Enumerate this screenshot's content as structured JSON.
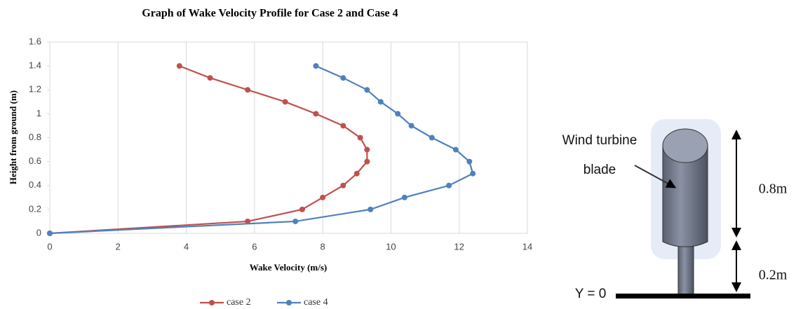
{
  "chart_data": {
    "type": "line",
    "title": "Graph of Wake Velocity Profile for Case 2 and Case 4",
    "x_label": "Wake Velocity (m/s)",
    "y_label": "Height from ground (m)",
    "xlim": [
      0,
      14
    ],
    "xticks": [
      0,
      2,
      4,
      6,
      8,
      10,
      12,
      14
    ],
    "ylim": [
      0,
      1.6
    ],
    "yticks": [
      0,
      0.2,
      0.4,
      0.6,
      0.8,
      1,
      1.2,
      1.4,
      1.6
    ],
    "grid": "x",
    "legend": "bottom",
    "series": [
      {
        "name": "case 2",
        "color": "#c0504d",
        "x": [
          0,
          5.8,
          7.4,
          8.0,
          8.6,
          9.0,
          9.3,
          9.3,
          9.1,
          8.6,
          7.8,
          6.9,
          5.8,
          4.7,
          3.8
        ],
        "values": [
          0,
          0.1,
          0.2,
          0.3,
          0.4,
          0.5,
          0.6,
          0.7,
          0.8,
          0.9,
          1,
          1.1,
          1.2,
          1.3,
          1.4
        ]
      },
      {
        "name": "case 4",
        "color": "#4f81bd",
        "x": [
          0,
          7.2,
          9.4,
          10.4,
          11.7,
          12.4,
          12.3,
          11.9,
          11.2,
          10.6,
          10.2,
          9.7,
          9.3,
          8.6,
          7.8
        ],
        "values": [
          0,
          0.1,
          0.2,
          0.3,
          0.4,
          0.5,
          0.6,
          0.7,
          0.8,
          0.9,
          1,
          1.1,
          1.2,
          1.3,
          1.4
        ]
      }
    ]
  },
  "diagram": {
    "label": [
      "Wind turbine",
      "blade"
    ],
    "upper_height": "0.8m",
    "lower_height": "0.2m",
    "ground": "Y = 0"
  }
}
